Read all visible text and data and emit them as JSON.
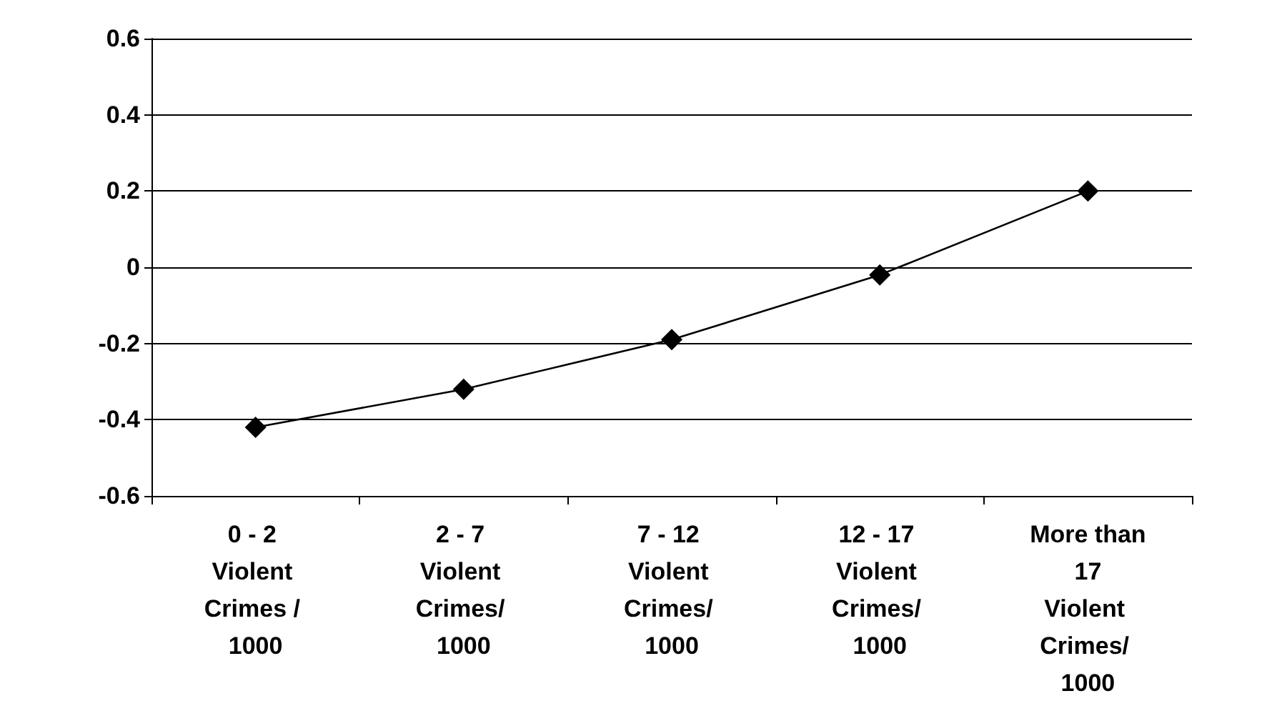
{
  "chart_data": {
    "type": "line",
    "categories": [
      "0 - 2 Violent Crimes / 1000",
      "2 - 7 Violent Crimes/ 1000",
      "7 - 12 Violent Crimes/ 1000",
      "12 - 17 Violent Crimes/ 1000",
      "More than 17 Violent Crimes/ 1000"
    ],
    "series": [
      {
        "color": "#000000",
        "values": [
          -0.42,
          -0.32,
          -0.19,
          -0.02,
          0.2
        ]
      }
    ],
    "ylim": [
      -0.6,
      0.6
    ],
    "yticks": [
      -0.6,
      -0.4,
      -0.2,
      0,
      0.2,
      0.4,
      0.6
    ],
    "grid": "y",
    "marker": "diamond",
    "line_style": "solid"
  }
}
